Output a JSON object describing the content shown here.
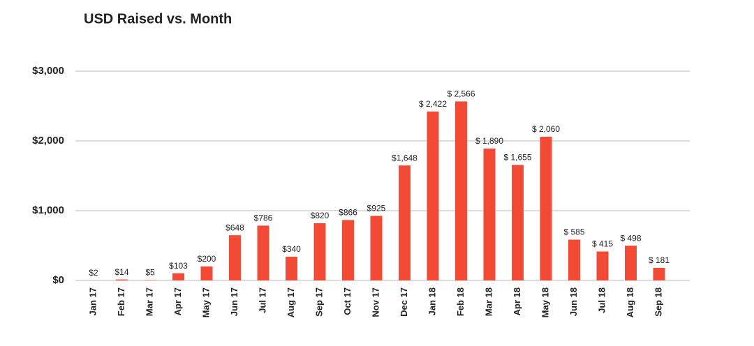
{
  "chart_data": {
    "type": "bar",
    "title": "USD Raised vs. Month",
    "categories": [
      "Jan 17",
      "Feb 17",
      "Mar 17",
      "Apr 17",
      "May 17",
      "Jun 17",
      "Jul 17",
      "Aug 17",
      "Sep 17",
      "Oct 17",
      "Nov 17",
      "Dec 17",
      "Jan 18",
      "Feb 18",
      "Mar 18",
      "Apr 18",
      "May 18",
      "Jun 18",
      "Jul 18",
      "Aug 18",
      "Sep 18"
    ],
    "values": [
      2,
      14,
      5,
      103,
      200,
      648,
      786,
      340,
      820,
      866,
      925,
      1648,
      2422,
      2566,
      1890,
      1655,
      2060,
      585,
      415,
      498,
      181
    ],
    "value_labels": [
      "$2",
      "$14",
      "$5",
      "$103",
      "$200",
      "$648",
      "$786",
      "$340",
      "$820",
      "$866",
      "$925",
      "$1,648",
      "$ 2,422",
      "$ 2,566",
      "$ 1,890",
      "$ 1,655",
      "$ 2,060",
      "$ 585",
      "$ 415",
      "$ 498",
      "$ 181"
    ],
    "color": "#f24a35",
    "ylim": [
      0,
      3000
    ],
    "yticks": [
      {
        "value": 0,
        "label": "$0"
      },
      {
        "value": 1000,
        "label": "$1,000"
      },
      {
        "value": 2000,
        "label": "$2,000"
      },
      {
        "value": 3000,
        "label": "$3,000"
      }
    ],
    "grid": true
  }
}
